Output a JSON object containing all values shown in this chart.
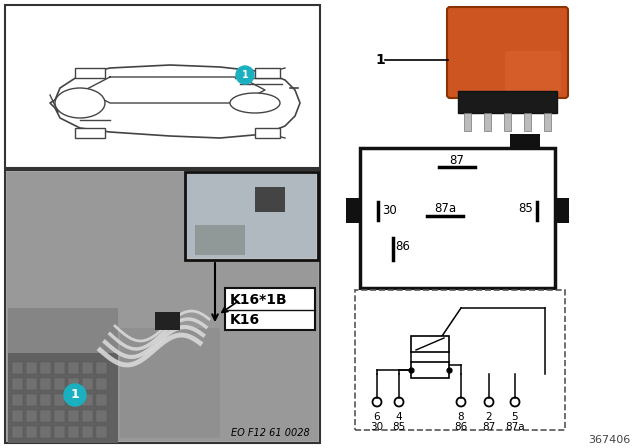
{
  "bg_color": "#ffffff",
  "relay_color": "#cc5522",
  "relay_dark": "#aa3300",
  "car_outline_color": "#444444",
  "teal_color": "#1ab0c0",
  "pin_label_87": "87",
  "pin_label_30": "30",
  "pin_label_87a": "87a",
  "pin_label_85": "85",
  "pin_label_86": "86",
  "schematic_pins_top": [
    "6",
    "4",
    "8",
    "2",
    "5"
  ],
  "schematic_pins_bot": [
    "30",
    "85",
    "86",
    "87",
    "87a"
  ],
  "label1": "K16",
  "label2": "K16*1B",
  "part_number": "EO F12 61 0028",
  "diagram_number": "367406",
  "item_number": "1",
  "photo_bg": "#aaaaaa",
  "photo_dark": "#888888",
  "inset_bg": "#c0c0c0"
}
